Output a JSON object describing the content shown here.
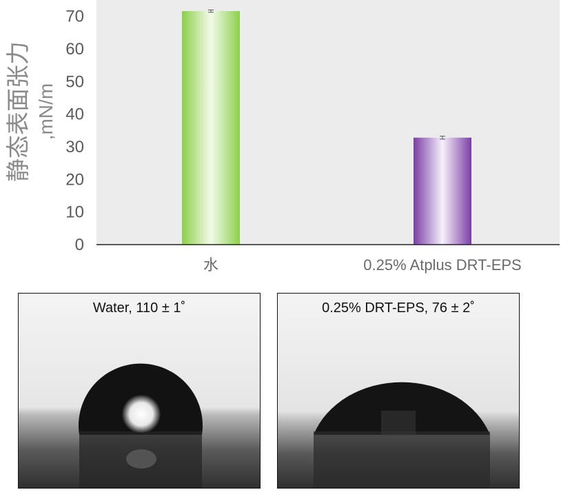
{
  "chart_data": {
    "type": "bar",
    "categories": [
      "水",
      "0.25% Atplus DRT-EPS"
    ],
    "values": [
      71.6,
      32.8
    ],
    "errors": [
      0.35,
      0.45
    ],
    "ylabel_line1": "静态表面张力",
    "ylabel_line2": ",mN/m",
    "ylim": [
      0,
      75
    ],
    "yticks": [
      0,
      10,
      20,
      30,
      40,
      50,
      60,
      70
    ],
    "grid": false,
    "plot_background": "#ececec",
    "bar_colors": [
      {
        "edge": "#8ccf4c",
        "center": "#f3fbe8"
      },
      {
        "edge": "#7a3fa4",
        "center": "#f7f0fb"
      }
    ]
  },
  "photos": [
    {
      "caption": "Water, 110 ± 1˚"
    },
    {
      "caption": "0.25% DRT-EPS, 76 ± 2˚"
    }
  ]
}
